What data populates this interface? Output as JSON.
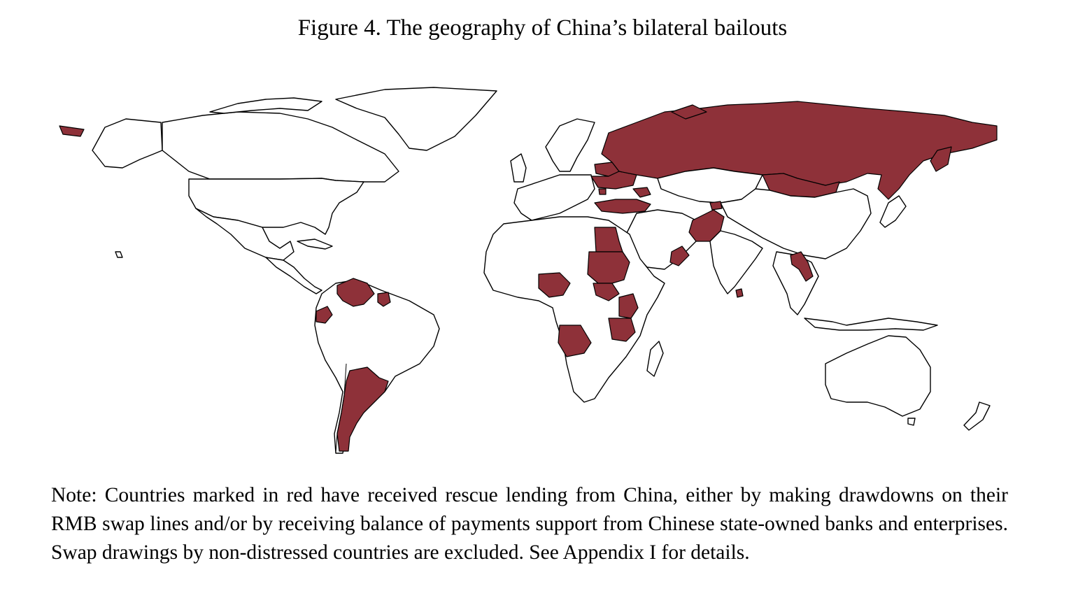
{
  "figure": {
    "title": "Figure 4. The geography of China’s bilateral bailouts",
    "note": "Note: Countries marked in red have received rescue lending from China, either by making drawdowns on their RMB swap lines and/or by receiving balance of payments support from Chinese state-owned banks and enterprises. Swap drawings by non-distressed countries are excluded. See Appendix I for details."
  },
  "map": {
    "projection": "world",
    "colors": {
      "bailout_fill": "#8e3139",
      "land_fill": "#ffffff",
      "border": "#000000"
    },
    "highlighted_countries": [
      "Russia",
      "Mongolia",
      "Belarus",
      "Ukraine",
      "Moldova",
      "Turkey",
      "Egypt",
      "Sudan",
      "South Sudan",
      "Nigeria",
      "Angola",
      "Kenya",
      "Tanzania",
      "Pakistan",
      "Oman",
      "Sri Lanka",
      "Laos",
      "Venezuela",
      "Suriname",
      "Ecuador",
      "Argentina",
      "Georgia",
      "Armenia",
      "Tajikistan"
    ]
  }
}
